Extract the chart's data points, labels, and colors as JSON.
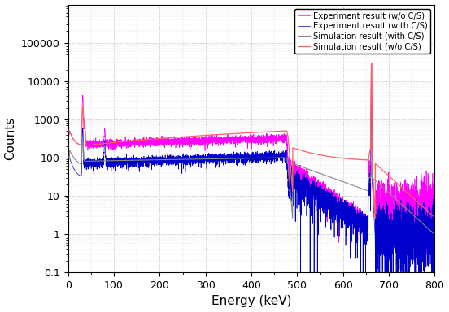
{
  "title": "",
  "xlabel": "Energy (keV)",
  "ylabel": "Counts",
  "xlim": [
    0,
    800
  ],
  "ylim": [
    0.1,
    1000000
  ],
  "yticks": [
    0.1,
    1,
    10,
    100,
    1000,
    10000,
    100000
  ],
  "ytick_labels": [
    "0.1",
    "1",
    "10",
    "100",
    "1000",
    "10000",
    "100000"
  ],
  "legend": [
    "Simulation result (with C/S)",
    "Simulation result (w/o C/S)",
    "Experiment result (with C/S)",
    "Experiment result (w/o C/S)"
  ],
  "colors": {
    "sim_with": "#888888",
    "sim_without": "#ff6060",
    "exp_with": "#0000cc",
    "exp_without": "#ff00ff"
  },
  "background": "#ffffff",
  "grid_color": "#bbbbbb"
}
